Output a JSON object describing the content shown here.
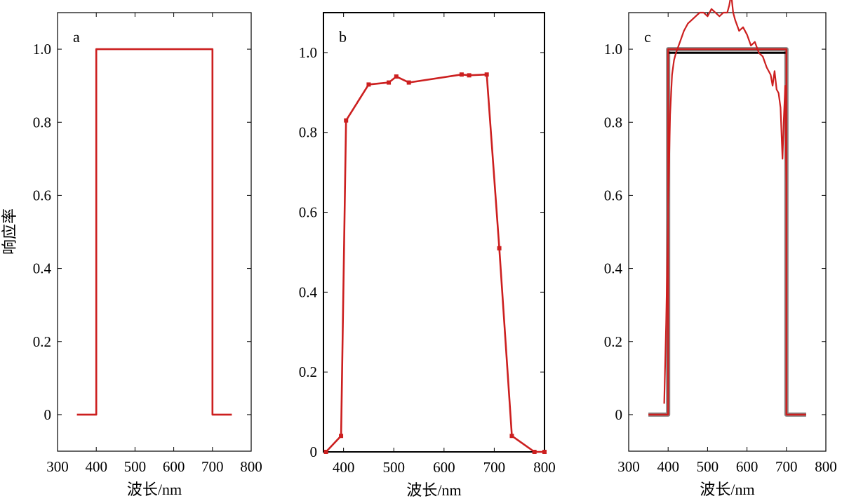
{
  "figure": {
    "ylabel": "响应率"
  },
  "colors": {
    "response": "#cc1f1f",
    "reference": "#000000",
    "reference_shadow": "#888888"
  },
  "chart_data": [
    {
      "type": "line",
      "panel_label": "a",
      "xlabel": "波长/nm",
      "xlim": [
        300,
        800
      ],
      "ylim": [
        -0.1,
        1.1
      ],
      "xticks": [
        300,
        400,
        500,
        600,
        700,
        800
      ],
      "xtick_labels": [
        "300",
        "400",
        "500",
        "600",
        "700",
        "800"
      ],
      "yticks": [
        0,
        0.2,
        0.4,
        0.6,
        0.8,
        1.0
      ],
      "ytick_labels": [
        "0",
        "0.2",
        "0.4",
        "0.6",
        "0.8",
        "1.0"
      ],
      "series": [
        {
          "x": [
            350,
            400,
            400,
            700,
            700,
            750
          ],
          "y": [
            0,
            0,
            1,
            1,
            0,
            0
          ]
        }
      ]
    },
    {
      "type": "line",
      "panel_label": "b",
      "xlabel": "波长/nm",
      "xlim": [
        360,
        800
      ],
      "ylim": [
        0,
        1.1
      ],
      "xticks": [
        400,
        500,
        600,
        700,
        800
      ],
      "xtick_labels": [
        "400",
        "500",
        "600",
        "700",
        "800"
      ],
      "yticks": [
        0,
        0.2,
        0.4,
        0.6,
        0.8,
        1.0
      ],
      "ytick_labels": [
        "0",
        "0.2",
        "0.4",
        "0.6",
        "0.8",
        "1.0"
      ],
      "series": [
        {
          "markers": true,
          "x": [
            365,
            395,
            405,
            450,
            490,
            505,
            530,
            635,
            650,
            685,
            710,
            735,
            780,
            800
          ],
          "y": [
            0.0,
            0.04,
            0.83,
            0.92,
            0.925,
            0.94,
            0.925,
            0.945,
            0.943,
            0.945,
            0.51,
            0.04,
            0.0,
            0.0
          ]
        }
      ]
    },
    {
      "type": "line",
      "panel_label": "c",
      "xlabel": "波长/nm",
      "xlim": [
        300,
        800
      ],
      "ylim": [
        -0.1,
        1.1
      ],
      "xticks": [
        300,
        400,
        500,
        600,
        700,
        800
      ],
      "xtick_labels": [
        "300",
        "400",
        "500",
        "600",
        "700",
        "800"
      ],
      "yticks": [
        0,
        0.2,
        0.4,
        0.6,
        0.8,
        1.0
      ],
      "ytick_labels": [
        "0",
        "0.2",
        "0.4",
        "0.6",
        "0.8",
        "1.0"
      ],
      "series": [
        {
          "role": "reference",
          "x": [
            350,
            400,
            400,
            700,
            700,
            750
          ],
          "y": [
            0,
            0,
            1,
            1,
            0,
            0
          ]
        },
        {
          "role": "reference-black",
          "x": [
            400,
            700
          ],
          "y": [
            0.99,
            0.99
          ]
        },
        {
          "role": "rect",
          "x": [
            350,
            400,
            400,
            700,
            700,
            750
          ],
          "y": [
            0,
            0,
            1,
            1,
            0,
            0
          ]
        },
        {
          "role": "measured",
          "x": [
            390,
            395,
            400,
            405,
            410,
            415,
            420,
            430,
            440,
            450,
            460,
            470,
            480,
            490,
            500,
            510,
            520,
            530,
            540,
            550,
            555,
            560,
            565,
            570,
            580,
            590,
            600,
            610,
            620,
            630,
            640,
            650,
            660,
            665,
            670,
            675,
            680,
            685,
            690,
            693,
            697,
            700
          ],
          "y": [
            0.03,
            0.25,
            0.55,
            0.82,
            0.93,
            0.97,
            0.99,
            1.02,
            1.05,
            1.07,
            1.08,
            1.09,
            1.1,
            1.1,
            1.09,
            1.11,
            1.1,
            1.09,
            1.1,
            1.1,
            1.12,
            1.15,
            1.1,
            1.08,
            1.05,
            1.06,
            1.04,
            1.01,
            1.02,
            0.99,
            0.98,
            0.95,
            0.93,
            0.9,
            0.94,
            0.89,
            0.88,
            0.84,
            0.7,
            0.8,
            0.9,
            0.6
          ]
        }
      ]
    }
  ]
}
